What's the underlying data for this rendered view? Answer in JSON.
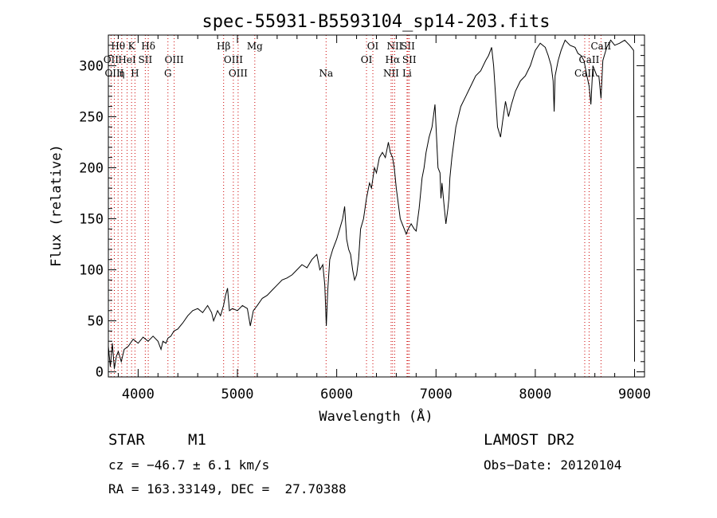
{
  "chart_data": {
    "type": "line",
    "title": "spec-55931-B5593104_sp14-203.fits",
    "xlabel": "Wavelength (Å)",
    "ylabel": "Flux (relative)",
    "xlim": [
      3700,
      9100
    ],
    "ylim": [
      -5,
      330
    ],
    "xticks": [
      4000,
      5000,
      6000,
      7000,
      8000,
      9000
    ],
    "yticks": [
      0,
      50,
      100,
      150,
      200,
      250,
      300
    ],
    "grid": false,
    "series": [
      {
        "x": [
          3700,
          3720,
          3740,
          3760,
          3780,
          3800,
          3830,
          3860,
          3900,
          3950,
          4000,
          4050,
          4100,
          4150,
          4200,
          4230,
          4250,
          4280,
          4300,
          4330,
          4360,
          4400,
          4450,
          4500,
          4550,
          4600,
          4650,
          4700,
          4740,
          4760,
          4800,
          4830,
          4860,
          4880,
          4900,
          4920,
          4950,
          5000,
          5050,
          5100,
          5130,
          5160,
          5200,
          5250,
          5300,
          5350,
          5400,
          5450,
          5500,
          5550,
          5600,
          5650,
          5700,
          5750,
          5800,
          5830,
          5860,
          5880,
          5895,
          5910,
          5930,
          5960,
          6000,
          6030,
          6060,
          6080,
          6100,
          6120,
          6140,
          6160,
          6180,
          6200,
          6220,
          6240,
          6270,
          6300,
          6330,
          6350,
          6380,
          6400,
          6430,
          6460,
          6490,
          6520,
          6540,
          6563,
          6580,
          6600,
          6620,
          6640,
          6660,
          6680,
          6700,
          6720,
          6750,
          6780,
          6800,
          6830,
          6860,
          6880,
          6900,
          6930,
          6960,
          6990,
          7020,
          7040,
          7050,
          7060,
          7080,
          7100,
          7120,
          7130,
          7140,
          7160,
          7180,
          7200,
          7250,
          7300,
          7350,
          7400,
          7450,
          7500,
          7530,
          7560,
          7580,
          7600,
          7620,
          7650,
          7670,
          7700,
          7730,
          7760,
          7800,
          7850,
          7900,
          7950,
          8000,
          8050,
          8100,
          8130,
          8160,
          8180,
          8190,
          8200,
          8230,
          8260,
          8300,
          8350,
          8400,
          8430,
          8460,
          8490,
          8520,
          8542,
          8560,
          8580,
          8620,
          8640,
          8662,
          8680,
          8720,
          8760,
          8800,
          8850,
          8900,
          8950,
          8990,
          9000
        ],
        "values": [
          25,
          5,
          28,
          3,
          15,
          20,
          10,
          22,
          25,
          32,
          28,
          34,
          30,
          35,
          30,
          22,
          30,
          28,
          33,
          35,
          40,
          42,
          48,
          55,
          60,
          62,
          58,
          65,
          58,
          50,
          60,
          55,
          65,
          75,
          82,
          60,
          62,
          60,
          65,
          62,
          45,
          60,
          65,
          72,
          75,
          80,
          85,
          90,
          92,
          95,
          100,
          105,
          102,
          110,
          115,
          100,
          105,
          85,
          45,
          80,
          110,
          120,
          130,
          140,
          150,
          162,
          130,
          120,
          115,
          100,
          90,
          95,
          110,
          140,
          150,
          170,
          185,
          180,
          200,
          195,
          210,
          215,
          210,
          225,
          215,
          210,
          200,
          180,
          165,
          150,
          145,
          140,
          135,
          140,
          145,
          140,
          138,
          160,
          190,
          200,
          215,
          230,
          240,
          262,
          200,
          195,
          170,
          185,
          165,
          145,
          160,
          170,
          190,
          210,
          225,
          240,
          260,
          270,
          280,
          290,
          295,
          305,
          310,
          318,
          300,
          270,
          240,
          230,
          245,
          265,
          250,
          262,
          275,
          285,
          290,
          300,
          315,
          322,
          318,
          310,
          300,
          285,
          255,
          290,
          305,
          315,
          325,
          320,
          318,
          312,
          310,
          305,
          290,
          280,
          262,
          300,
          290,
          290,
          268,
          305,
          318,
          325,
          320,
          322,
          325,
          320,
          315,
          10
        ]
      }
    ],
    "line_markers": [
      {
        "label": "Hθ",
        "x": 3798,
        "row": 1
      },
      {
        "label": "K",
        "x": 3934,
        "row": 1
      },
      {
        "label": "Hδ",
        "x": 4102,
        "row": 1
      },
      {
        "label": "Hβ",
        "x": 4861,
        "row": 1
      },
      {
        "label": "Mg",
        "x": 5175,
        "row": 1
      },
      {
        "label": "OI",
        "x": 6364,
        "row": 1
      },
      {
        "label": "NII",
        "x": 6584,
        "row": 1
      },
      {
        "label": "SII",
        "x": 6717,
        "row": 1
      },
      {
        "label": "CaII",
        "x": 8662,
        "row": 1
      },
      {
        "label": "OII",
        "x": 3727,
        "row": 2
      },
      {
        "label": "HeI",
        "x": 3889,
        "row": 2
      },
      {
        "label": "SII",
        "x": 4072,
        "row": 2
      },
      {
        "label": "OIII",
        "x": 4363,
        "row": 2
      },
      {
        "label": "OIII",
        "x": 4959,
        "row": 2
      },
      {
        "label": "OI",
        "x": 6300,
        "row": 2
      },
      {
        "label": "Hα",
        "x": 6563,
        "row": 2
      },
      {
        "label": "SII",
        "x": 6731,
        "row": 2
      },
      {
        "label": "CaII",
        "x": 8542,
        "row": 2
      },
      {
        "label": "OIII",
        "x": 3760,
        "row": 3
      },
      {
        "label": "η",
        "x": 3835,
        "row": 3
      },
      {
        "label": "H",
        "x": 3968,
        "row": 3
      },
      {
        "label": "G",
        "x": 4300,
        "row": 3
      },
      {
        "label": "OIII",
        "x": 5007,
        "row": 3
      },
      {
        "label": "Na",
        "x": 5893,
        "row": 3
      },
      {
        "label": "NII",
        "x": 6548,
        "row": 3
      },
      {
        "label": "Li",
        "x": 6708,
        "row": 3
      },
      {
        "label": "CaII",
        "x": 8498,
        "row": 3
      }
    ]
  },
  "info": {
    "object_class": "STAR",
    "subclass": "M1",
    "survey": "LAMOST DR2",
    "cz": "cz = −46.7 ± 6.1 km/s",
    "obs_date": "Obs−Date: 20120104",
    "coords": "RA = 163.33149, DEC =  27.70388"
  }
}
